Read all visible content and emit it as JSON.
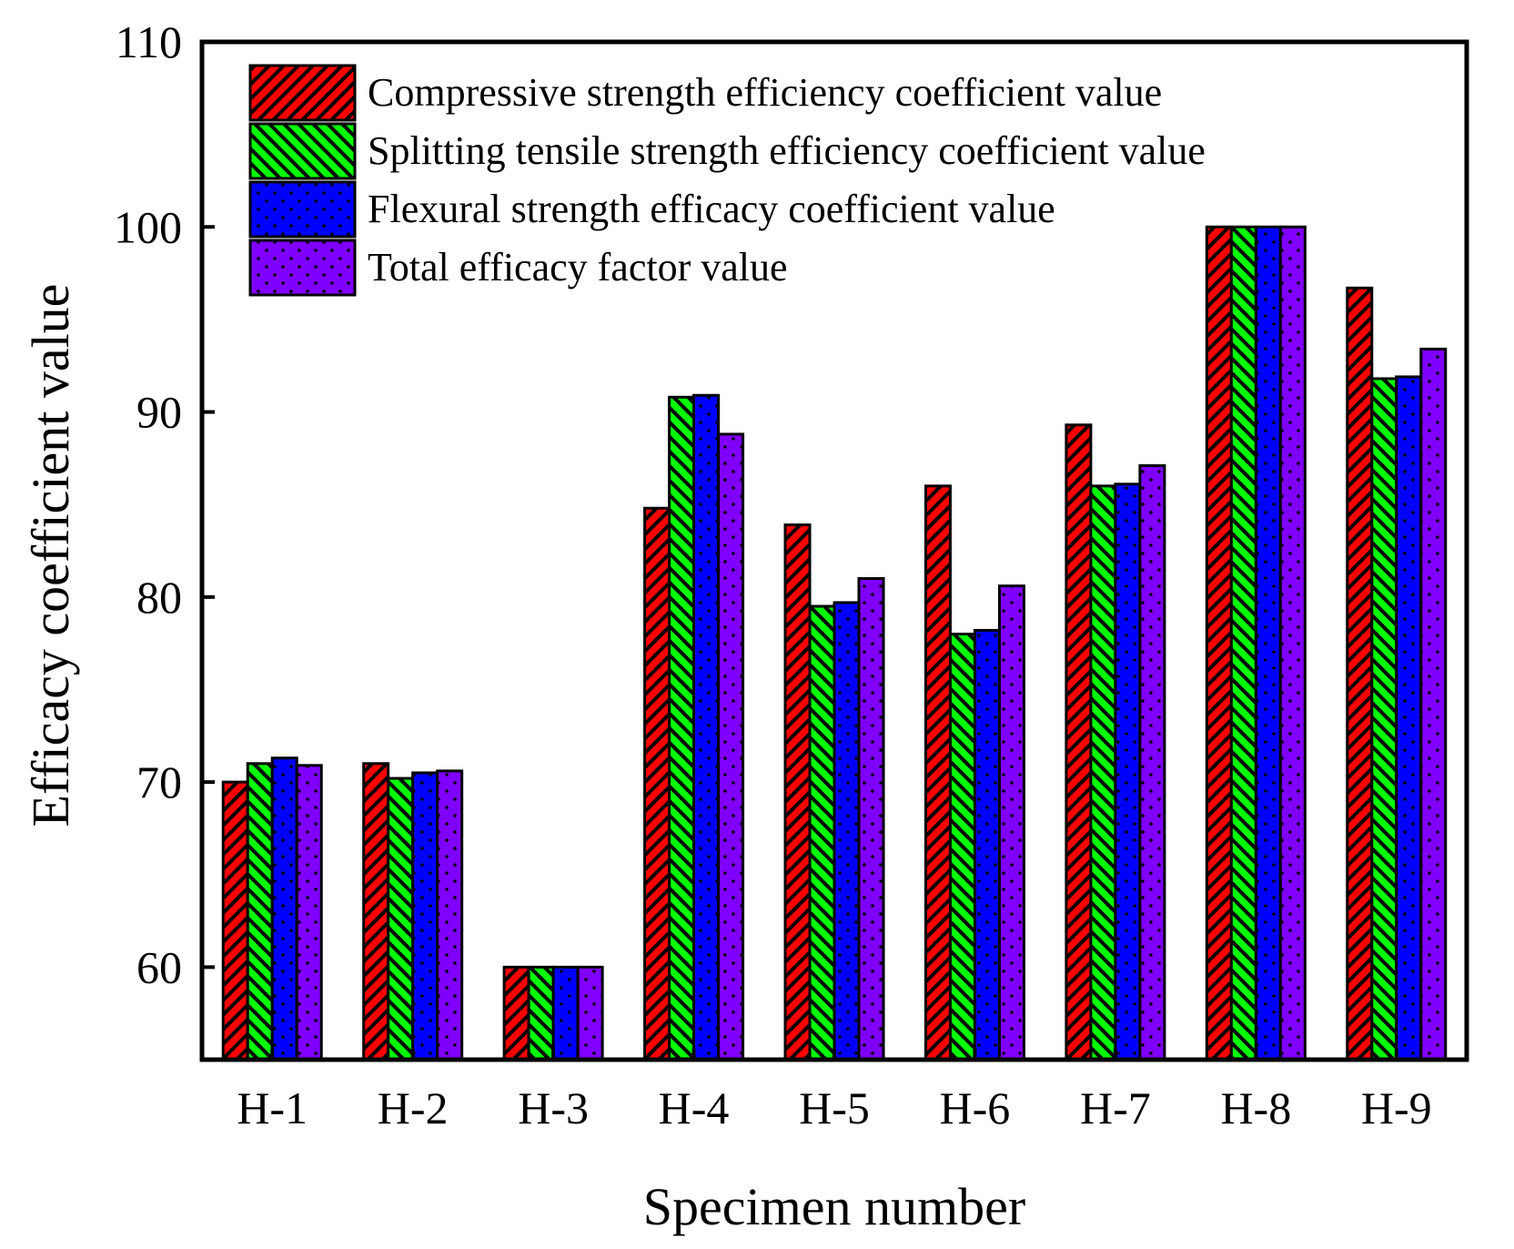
{
  "chart_data": {
    "type": "bar",
    "title": "",
    "xlabel": "Specimen number",
    "ylabel": "Efficacy coefficient value",
    "categories": [
      "H-1",
      "H-2",
      "H-3",
      "H-4",
      "H-5",
      "H-6",
      "H-7",
      "H-8",
      "H-9"
    ],
    "ylim": [
      55,
      110
    ],
    "yticks": [
      60,
      70,
      80,
      90,
      100,
      110
    ],
    "ytick_labels": [
      "60",
      "70",
      "80",
      "90",
      "100",
      "110"
    ],
    "grid": false,
    "legend_position": "top-left",
    "series": [
      {
        "name": "Compressive strength efficiency coefficient value",
        "color": "#ff0000",
        "pattern": "hatch-forward",
        "values": [
          70.0,
          71.0,
          60.0,
          84.8,
          83.9,
          86.0,
          89.3,
          100.0,
          96.7
        ]
      },
      {
        "name": "Splitting tensile strength efficiency coefficient value",
        "color": "#00ff00",
        "pattern": "hatch-backward",
        "values": [
          71.0,
          70.2,
          60.0,
          90.8,
          79.5,
          78.0,
          86.0,
          100.0,
          91.8
        ]
      },
      {
        "name": "Flexural strength efficacy coefficient value",
        "color": "#0000ff",
        "pattern": "dots",
        "values": [
          71.3,
          70.5,
          60.0,
          90.9,
          79.7,
          78.2,
          86.1,
          100.0,
          91.9
        ]
      },
      {
        "name": "Total efficacy factor value",
        "color": "#8000ff",
        "pattern": "dots",
        "values": [
          70.9,
          70.6,
          60.0,
          88.8,
          81.0,
          80.6,
          87.1,
          100.0,
          93.4
        ]
      }
    ]
  }
}
